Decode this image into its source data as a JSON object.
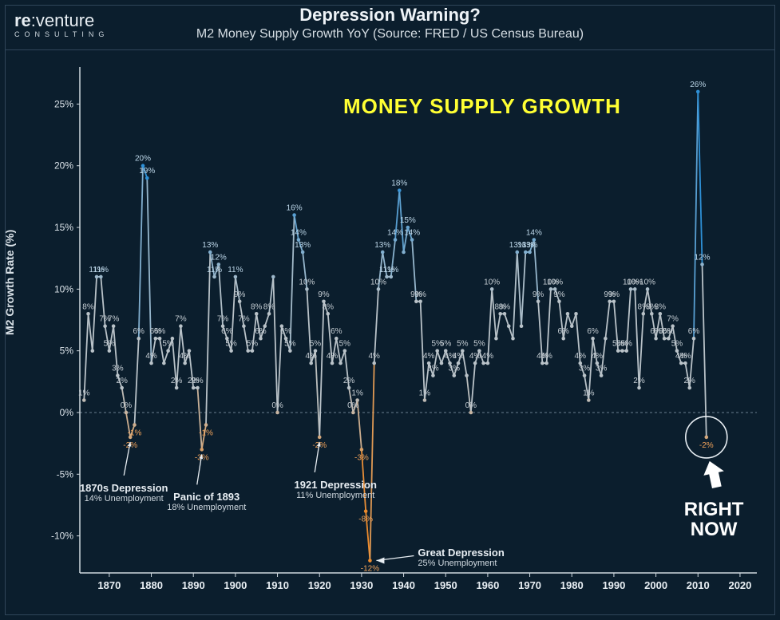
{
  "logo": {
    "line1_a": "re",
    "line1_b": ":venture",
    "line2": "CONSULTING"
  },
  "title": "Depression Warning?",
  "subtitle": "M2 Money Supply Growth YoY  (Source: FRED / US Census Bureau)",
  "ylabel": "M2 Growth Rate (%)",
  "overlay": "MONEY SUPPLY GROWTH",
  "chart": {
    "type": "line",
    "background_color": "#0b1e2d",
    "grid_color": "#1a3346",
    "zero_line_color": "#6a7f90",
    "axis_color": "#cfd8df",
    "title_fontsize": 22,
    "label_fontsize_top": 10,
    "label_color_top": "#bcd6e8",
    "label_color_mid": "#c6ced4",
    "label_color_neg": "#f2a35a",
    "marker_size": 2.3,
    "line_width": 1.8,
    "color_high": "#2e90d6",
    "color_mid": "#b9c2c8",
    "color_low": "#ec8b2d",
    "ylim": [
      -13,
      28
    ],
    "ytick_step": 5,
    "yticks": [
      -10,
      -5,
      0,
      5,
      10,
      15,
      20,
      25
    ],
    "xlim": [
      1863,
      2024
    ],
    "xticks": [
      1870,
      1880,
      1890,
      1900,
      1910,
      1920,
      1930,
      1940,
      1950,
      1960,
      1970,
      1980,
      1990,
      2000,
      2010,
      2020
    ],
    "years_start": 1864,
    "values": [
      1,
      8,
      5,
      11,
      11,
      7,
      5,
      7,
      3,
      2,
      0,
      -2,
      -1,
      6,
      20,
      19,
      4,
      6,
      6,
      4,
      5,
      6,
      2,
      7,
      4,
      5,
      2,
      2,
      -3,
      -1,
      13,
      11,
      12,
      7,
      6,
      5,
      11,
      9,
      7,
      5,
      5,
      8,
      6,
      7,
      8,
      11,
      0,
      7,
      6,
      5,
      16,
      14,
      13,
      10,
      4,
      5,
      -2,
      9,
      8,
      4,
      6,
      4,
      5,
      2,
      0,
      1,
      -3,
      -8,
      -12,
      4,
      10,
      13,
      11,
      11,
      14,
      18,
      13,
      15,
      14,
      9,
      9,
      1,
      4,
      3,
      5,
      4,
      5,
      4,
      3,
      4,
      5,
      3,
      0,
      4,
      5,
      4,
      4,
      10,
      6,
      8,
      8,
      7,
      6,
      13,
      7,
      13,
      13,
      14,
      9,
      4,
      4,
      10,
      10,
      9,
      6,
      8,
      7,
      8,
      4,
      3,
      1,
      6,
      4,
      3,
      6,
      9,
      9,
      5,
      5,
      5,
      10,
      10,
      2,
      8,
      10,
      8,
      6,
      8,
      6,
      6,
      7,
      5,
      4,
      4,
      2,
      6,
      26,
      12,
      -2
    ],
    "highlight_labels": [
      {
        "i": 0,
        "t": "1%"
      },
      {
        "i": 1,
        "t": "8%"
      },
      {
        "i": 3,
        "t": "11%"
      },
      {
        "i": 4,
        "t": "11%"
      },
      {
        "i": 5,
        "t": "7%"
      },
      {
        "i": 7,
        "t": "7%"
      },
      {
        "i": 6,
        "t": "5%"
      },
      {
        "i": 8,
        "t": "3%"
      },
      {
        "i": 9,
        "t": "2%"
      },
      {
        "i": 10,
        "t": "0%"
      },
      {
        "i": 11,
        "t": "-2%"
      },
      {
        "i": 12,
        "t": "-1%"
      },
      {
        "i": 13,
        "t": "6%"
      },
      {
        "i": 14,
        "t": "20%"
      },
      {
        "i": 15,
        "t": "19%"
      },
      {
        "i": 16,
        "t": "4%"
      },
      {
        "i": 17,
        "t": "6%"
      },
      {
        "i": 18,
        "t": "6%"
      },
      {
        "i": 20,
        "t": "5%"
      },
      {
        "i": 22,
        "t": "2%"
      },
      {
        "i": 23,
        "t": "7%"
      },
      {
        "i": 24,
        "t": "4%"
      },
      {
        "i": 26,
        "t": "2%"
      },
      {
        "i": 27,
        "t": "2%"
      },
      {
        "i": 28,
        "t": "-3%"
      },
      {
        "i": 29,
        "t": "-1%"
      },
      {
        "i": 30,
        "t": "13%"
      },
      {
        "i": 31,
        "t": "11%"
      },
      {
        "i": 32,
        "t": "12%"
      },
      {
        "i": 33,
        "t": "7%"
      },
      {
        "i": 34,
        "t": "6%"
      },
      {
        "i": 35,
        "t": "5%"
      },
      {
        "i": 36,
        "t": "11%"
      },
      {
        "i": 37,
        "t": "9%"
      },
      {
        "i": 38,
        "t": "7%"
      },
      {
        "i": 40,
        "t": "5%"
      },
      {
        "i": 41,
        "t": "8%"
      },
      {
        "i": 42,
        "t": "6%"
      },
      {
        "i": 44,
        "t": "8%"
      },
      {
        "i": 46,
        "t": "0%"
      },
      {
        "i": 48,
        "t": "6%"
      },
      {
        "i": 49,
        "t": "5%"
      },
      {
        "i": 50,
        "t": "16%"
      },
      {
        "i": 51,
        "t": "14%"
      },
      {
        "i": 52,
        "t": "13%"
      },
      {
        "i": 53,
        "t": "10%"
      },
      {
        "i": 54,
        "t": "4%"
      },
      {
        "i": 55,
        "t": "5%"
      },
      {
        "i": 56,
        "t": "-2%"
      },
      {
        "i": 57,
        "t": "9%"
      },
      {
        "i": 58,
        "t": "8%"
      },
      {
        "i": 59,
        "t": "4%"
      },
      {
        "i": 60,
        "t": "6%"
      },
      {
        "i": 62,
        "t": "5%"
      },
      {
        "i": 63,
        "t": "2%"
      },
      {
        "i": 64,
        "t": "0%"
      },
      {
        "i": 65,
        "t": "1%"
      },
      {
        "i": 66,
        "t": "-3%"
      },
      {
        "i": 67,
        "t": "-8%"
      },
      {
        "i": 68,
        "t": "-12%"
      },
      {
        "i": 69,
        "t": "4%"
      },
      {
        "i": 70,
        "t": "10%"
      },
      {
        "i": 71,
        "t": "13%"
      },
      {
        "i": 72,
        "t": "11%"
      },
      {
        "i": 73,
        "t": "11%"
      },
      {
        "i": 74,
        "t": "14%"
      },
      {
        "i": 75,
        "t": "18%"
      },
      {
        "i": 77,
        "t": "15%"
      },
      {
        "i": 78,
        "t": "14%"
      },
      {
        "i": 79,
        "t": "9%"
      },
      {
        "i": 80,
        "t": "9%"
      },
      {
        "i": 81,
        "t": "1%"
      },
      {
        "i": 82,
        "t": "4%"
      },
      {
        "i": 83,
        "t": "3%"
      },
      {
        "i": 84,
        "t": "5%"
      },
      {
        "i": 86,
        "t": "5%"
      },
      {
        "i": 87,
        "t": "4%"
      },
      {
        "i": 88,
        "t": "3%"
      },
      {
        "i": 89,
        "t": "4%"
      },
      {
        "i": 90,
        "t": "5%"
      },
      {
        "i": 92,
        "t": "0%"
      },
      {
        "i": 93,
        "t": "4%"
      },
      {
        "i": 94,
        "t": "5%"
      },
      {
        "i": 96,
        "t": "4%"
      },
      {
        "i": 97,
        "t": "10%"
      },
      {
        "i": 99,
        "t": "8%"
      },
      {
        "i": 100,
        "t": "8%"
      },
      {
        "i": 103,
        "t": "13%"
      },
      {
        "i": 105,
        "t": "13%"
      },
      {
        "i": 106,
        "t": "13%"
      },
      {
        "i": 107,
        "t": "14%"
      },
      {
        "i": 108,
        "t": "9%"
      },
      {
        "i": 109,
        "t": "4%"
      },
      {
        "i": 110,
        "t": "4%"
      },
      {
        "i": 111,
        "t": "10%"
      },
      {
        "i": 112,
        "t": "10%"
      },
      {
        "i": 113,
        "t": "9%"
      },
      {
        "i": 114,
        "t": "6%"
      },
      {
        "i": 118,
        "t": "4%"
      },
      {
        "i": 119,
        "t": "3%"
      },
      {
        "i": 120,
        "t": "1%"
      },
      {
        "i": 121,
        "t": "6%"
      },
      {
        "i": 122,
        "t": "4%"
      },
      {
        "i": 123,
        "t": "3%"
      },
      {
        "i": 125,
        "t": "9%"
      },
      {
        "i": 126,
        "t": "9%"
      },
      {
        "i": 127,
        "t": "5%"
      },
      {
        "i": 128,
        "t": "5%"
      },
      {
        "i": 129,
        "t": "5%"
      },
      {
        "i": 130,
        "t": "10%"
      },
      {
        "i": 131,
        "t": "10%"
      },
      {
        "i": 132,
        "t": "2%"
      },
      {
        "i": 133,
        "t": "8%"
      },
      {
        "i": 134,
        "t": "10%"
      },
      {
        "i": 135,
        "t": "8%"
      },
      {
        "i": 136,
        "t": "6%"
      },
      {
        "i": 137,
        "t": "8%"
      },
      {
        "i": 138,
        "t": "6%"
      },
      {
        "i": 139,
        "t": "6%"
      },
      {
        "i": 140,
        "t": "7%"
      },
      {
        "i": 141,
        "t": "5%"
      },
      {
        "i": 142,
        "t": "4%"
      },
      {
        "i": 143,
        "t": "4%"
      },
      {
        "i": 144,
        "t": "2%"
      },
      {
        "i": 145,
        "t": "6%"
      },
      {
        "i": 146,
        "t": "26%"
      },
      {
        "i": 147,
        "t": "12%"
      },
      {
        "i": 148,
        "t": "-2%"
      }
    ]
  },
  "annotations": [
    {
      "title": "1870s Depression",
      "sub": "14% Unemployment",
      "arrow_to_index": 11
    },
    {
      "title": "Panic of 1893",
      "sub": "18% Unemployment",
      "arrow_to_index": 28
    },
    {
      "title": "1921 Depression",
      "sub": "11% Unemployment",
      "arrow_to_index": 56
    },
    {
      "title": "Great Depression",
      "sub": "25% Unemployment",
      "arrow_to_index": 68
    }
  ],
  "right_now": {
    "label": "RIGHT\nNOW",
    "circle_index": 148
  }
}
